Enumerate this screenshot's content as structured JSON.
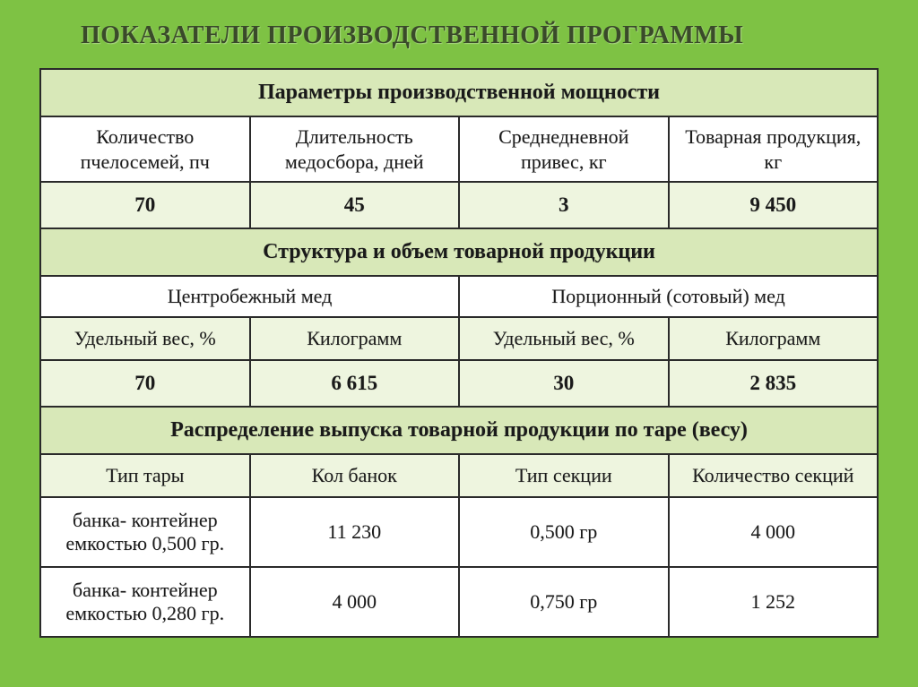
{
  "title": "ПОКАЗАТЕЛИ ПРОИЗВОДСТВЕННОЙ ПРОГРАММЫ",
  "section1": {
    "header": "Параметры производственной мощности",
    "cols": [
      "Количество пчелосемей, пч",
      "Длительность медосбора, дней",
      "Среднедневной привес, кг",
      "Товарная продукция, кг"
    ],
    "values": [
      "70",
      "45",
      "3",
      "9 450"
    ]
  },
  "section2": {
    "header": "Структура и объем товарной продукции",
    "groups": [
      "Центробежный мед",
      "Порционный (сотовый) мед"
    ],
    "cols": [
      "Удельный вес, %",
      "Килограмм",
      "Удельный вес, %",
      "Килограмм"
    ],
    "values": [
      "70",
      "6 615",
      "30",
      "2 835"
    ]
  },
  "section3": {
    "header": "Распределение выпуска товарной продукции по таре (весу)",
    "cols": [
      "Тип тары",
      "Кол банок",
      "Тип секции",
      "Количество секций"
    ],
    "rows": [
      [
        "банка- контейнер емкостью 0,500 гр.",
        "11 230",
        "0,500 гр",
        "4 000"
      ],
      [
        "банка- контейнер емкостью 0,280 гр.",
        "4 000",
        "0,750 гр",
        "1 252"
      ]
    ]
  },
  "style": {
    "background_color": "#7ec244",
    "section_header_bg": "#d8e8b8",
    "tinted_row_bg": "#eef5df",
    "plain_row_bg": "#ffffff",
    "border_color": "#2a2a2a",
    "title_color": "#3a4a2a",
    "font_family": "Times New Roman",
    "title_fontsize_pt": 21,
    "cell_fontsize_pt": 16
  }
}
